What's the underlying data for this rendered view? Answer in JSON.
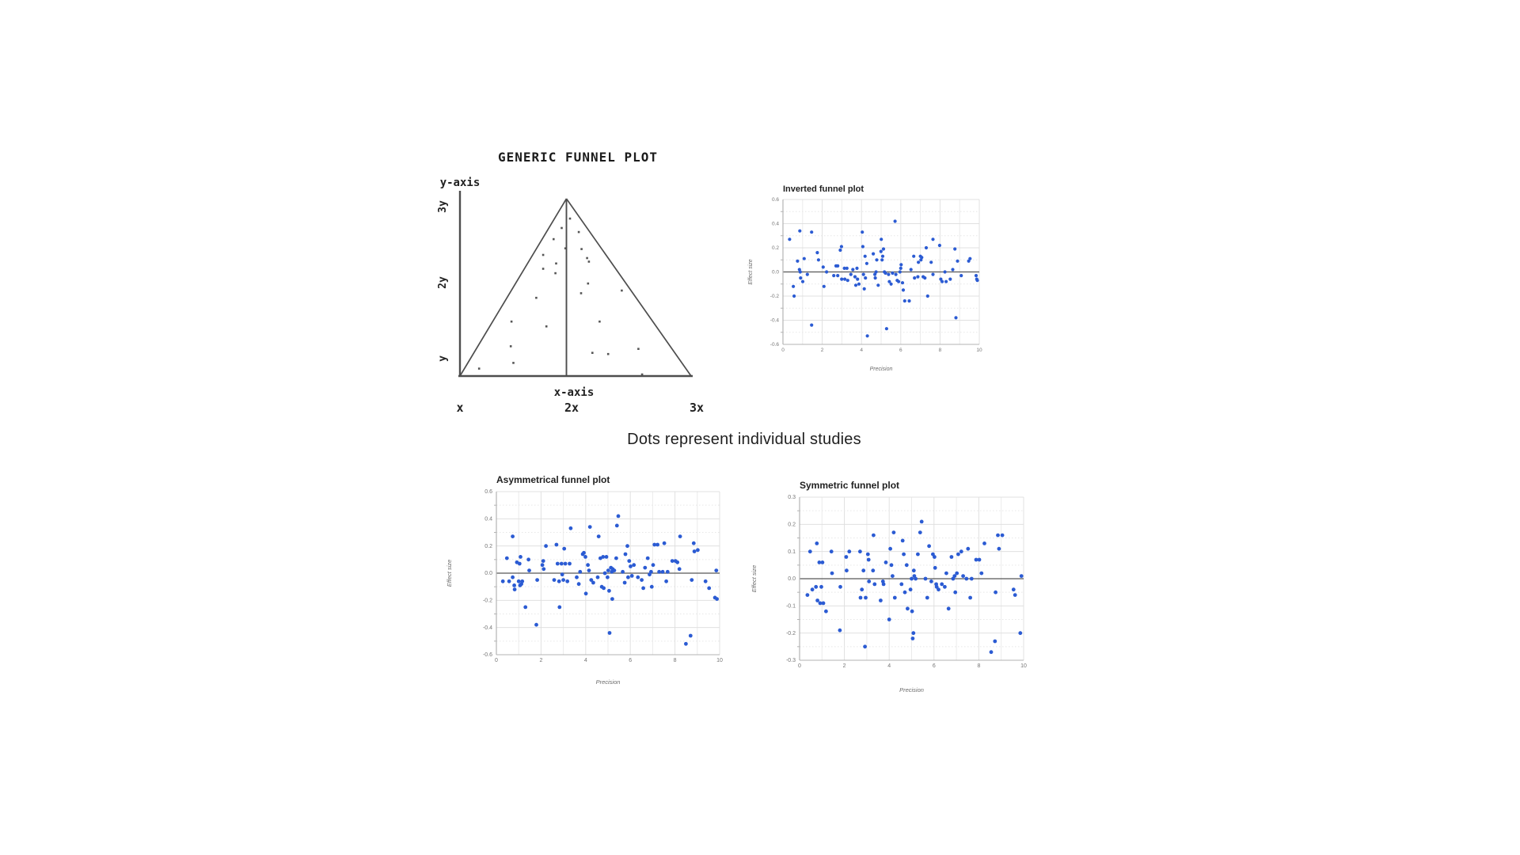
{
  "caption": "Dots represent individual studies",
  "generic_diagram": {
    "title": "GENERIC FUNNEL PLOT",
    "y_axis_label": "y-axis",
    "x_axis_label": "x-axis",
    "y_ticks": [
      "3y",
      "2y",
      "y"
    ],
    "x_ticks": [
      "x",
      "2x",
      "3x"
    ],
    "line_color": "#4d4d4d",
    "dot_color": "#555555",
    "dots": [
      [
        0.476,
        0.112
      ],
      [
        0.44,
        0.165
      ],
      [
        0.514,
        0.188
      ],
      [
        0.405,
        0.228
      ],
      [
        0.526,
        0.284
      ],
      [
        0.456,
        0.28
      ],
      [
        0.36,
        0.317
      ],
      [
        0.55,
        0.335
      ],
      [
        0.558,
        0.355
      ],
      [
        0.416,
        0.365
      ],
      [
        0.36,
        0.395
      ],
      [
        0.413,
        0.42
      ],
      [
        0.554,
        0.478
      ],
      [
        0.524,
        0.533
      ],
      [
        0.7,
        0.518
      ],
      [
        0.33,
        0.559
      ],
      [
        0.223,
        0.693
      ],
      [
        0.374,
        0.72
      ],
      [
        0.604,
        0.693
      ],
      [
        0.22,
        0.832
      ],
      [
        0.573,
        0.869
      ],
      [
        0.641,
        0.876
      ],
      [
        0.772,
        0.847
      ],
      [
        0.231,
        0.926
      ],
      [
        0.083,
        0.958
      ],
      [
        0.788,
        0.991
      ]
    ]
  },
  "chart_data": [
    {
      "id": "inverted",
      "type": "scatter",
      "title": "Inverted funnel plot",
      "xlabel": "Precision",
      "ylabel": "Effect size",
      "xlim": [
        0,
        10
      ],
      "ylim": [
        -0.6,
        0.6
      ],
      "x_ticks": [
        0,
        2,
        4,
        6,
        8,
        10
      ],
      "y_ticks": [
        0.6,
        0.4,
        0.2,
        0,
        -0.2,
        -0.4,
        -0.6
      ],
      "grid": true,
      "zero_line": true,
      "legend": "none",
      "dot_color": "#2b5bd3",
      "points": [
        [
          0.34,
          0.27
        ],
        [
          0.53,
          -0.12
        ],
        [
          0.57,
          -0.2
        ],
        [
          0.74,
          0.09
        ],
        [
          0.86,
          0.34
        ],
        [
          0.84,
          0.02
        ],
        [
          0.88,
          0.0
        ],
        [
          0.9,
          -0.05
        ],
        [
          1.01,
          -0.08
        ],
        [
          1.08,
          0.11
        ],
        [
          1.24,
          -0.02
        ],
        [
          1.46,
          0.33
        ],
        [
          1.46,
          -0.44
        ],
        [
          1.75,
          0.16
        ],
        [
          1.81,
          0.1
        ],
        [
          2.05,
          0.04
        ],
        [
          2.09,
          -0.12
        ],
        [
          2.22,
          0.0
        ],
        [
          2.59,
          -0.03
        ],
        [
          2.7,
          0.05
        ],
        [
          2.79,
          0.05
        ],
        [
          2.79,
          -0.03
        ],
        [
          2.92,
          0.18
        ],
        [
          2.98,
          0.21
        ],
        [
          2.99,
          -0.06
        ],
        [
          3.13,
          0.03
        ],
        [
          3.15,
          -0.06
        ],
        [
          3.26,
          0.03
        ],
        [
          3.3,
          -0.07
        ],
        [
          3.46,
          -0.02
        ],
        [
          3.56,
          0.02
        ],
        [
          3.67,
          -0.04
        ],
        [
          3.71,
          -0.11
        ],
        [
          3.77,
          0.03
        ],
        [
          3.8,
          -0.06
        ],
        [
          3.87,
          -0.1
        ],
        [
          4.04,
          0.33
        ],
        [
          4.07,
          0.21
        ],
        [
          4.1,
          -0.02
        ],
        [
          4.14,
          -0.14
        ],
        [
          4.18,
          0.13
        ],
        [
          4.2,
          -0.05
        ],
        [
          4.27,
          0.07
        ],
        [
          4.3,
          -0.53
        ],
        [
          4.6,
          0.15
        ],
        [
          4.68,
          -0.02
        ],
        [
          4.7,
          -0.05
        ],
        [
          4.74,
          0.0
        ],
        [
          4.78,
          0.1
        ],
        [
          4.85,
          -0.11
        ],
        [
          4.99,
          0.17
        ],
        [
          5.01,
          0.27
        ],
        [
          5.05,
          0.1
        ],
        [
          5.08,
          0.13
        ],
        [
          5.12,
          0.19
        ],
        [
          5.17,
          0.0
        ],
        [
          5.22,
          -0.01
        ],
        [
          5.28,
          -0.47
        ],
        [
          5.38,
          -0.02
        ],
        [
          5.42,
          -0.08
        ],
        [
          5.51,
          -0.1
        ],
        [
          5.58,
          -0.01
        ],
        [
          5.71,
          0.42
        ],
        [
          5.75,
          -0.02
        ],
        [
          5.82,
          -0.07
        ],
        [
          5.89,
          -0.08
        ],
        [
          5.96,
          0.0
        ],
        [
          6.0,
          0.03
        ],
        [
          6.02,
          0.06
        ],
        [
          6.09,
          -0.09
        ],
        [
          6.13,
          -0.15
        ],
        [
          6.2,
          -0.24
        ],
        [
          6.43,
          -0.24
        ],
        [
          6.52,
          0.02
        ],
        [
          6.66,
          0.13
        ],
        [
          6.7,
          -0.05
        ],
        [
          6.87,
          -0.04
        ],
        [
          6.9,
          0.08
        ],
        [
          7.0,
          0.13
        ],
        [
          7.03,
          0.1
        ],
        [
          7.07,
          0.12
        ],
        [
          7.14,
          -0.04
        ],
        [
          7.23,
          -0.05
        ],
        [
          7.3,
          0.2
        ],
        [
          7.37,
          -0.2
        ],
        [
          7.55,
          0.08
        ],
        [
          7.64,
          0.27
        ],
        [
          7.64,
          -0.02
        ],
        [
          7.98,
          0.22
        ],
        [
          8.04,
          -0.06
        ],
        [
          8.11,
          -0.08
        ],
        [
          8.25,
          0.0
        ],
        [
          8.31,
          -0.08
        ],
        [
          8.52,
          -0.06
        ],
        [
          8.65,
          0.02
        ],
        [
          8.76,
          0.19
        ],
        [
          8.81,
          -0.38
        ],
        [
          8.89,
          0.09
        ],
        [
          9.08,
          -0.03
        ],
        [
          9.46,
          0.09
        ],
        [
          9.53,
          0.11
        ],
        [
          9.84,
          -0.03
        ],
        [
          9.87,
          -0.06
        ],
        [
          9.9,
          -0.07
        ]
      ]
    },
    {
      "id": "asym",
      "type": "scatter",
      "title": "Asymmetrical funnel plot",
      "xlabel": "Precision",
      "ylabel": "Effect size",
      "xlim": [
        0,
        10
      ],
      "ylim": [
        -0.6,
        0.6
      ],
      "x_ticks": [
        0,
        2,
        4,
        6,
        8,
        10
      ],
      "y_ticks": [
        0.6,
        0.4,
        0.2,
        0,
        -0.2,
        -0.4,
        -0.6
      ],
      "grid": true,
      "zero_line": true,
      "legend": "none",
      "dot_color": "#2b5bd3",
      "points": [
        [
          0.29,
          -0.06
        ],
        [
          0.47,
          0.11
        ],
        [
          0.57,
          -0.06
        ],
        [
          0.73,
          0.27
        ],
        [
          0.73,
          -0.03
        ],
        [
          0.8,
          -0.09
        ],
        [
          0.82,
          -0.12
        ],
        [
          0.92,
          0.08
        ],
        [
          1.0,
          -0.06
        ],
        [
          1.04,
          0.07
        ],
        [
          1.06,
          -0.09
        ],
        [
          1.08,
          0.12
        ],
        [
          1.12,
          -0.08
        ],
        [
          1.16,
          -0.06
        ],
        [
          1.3,
          -0.25
        ],
        [
          1.44,
          0.1
        ],
        [
          1.47,
          0.02
        ],
        [
          1.79,
          -0.38
        ],
        [
          1.83,
          -0.05
        ],
        [
          2.06,
          0.06
        ],
        [
          2.1,
          0.09
        ],
        [
          2.12,
          0.03
        ],
        [
          2.22,
          0.2
        ],
        [
          2.59,
          -0.05
        ],
        [
          2.69,
          0.21
        ],
        [
          2.74,
          0.07
        ],
        [
          2.81,
          -0.06
        ],
        [
          2.83,
          -0.25
        ],
        [
          2.92,
          0.07
        ],
        [
          2.95,
          -0.01
        ],
        [
          3.0,
          -0.05
        ],
        [
          3.04,
          0.18
        ],
        [
          3.09,
          0.07
        ],
        [
          3.18,
          -0.06
        ],
        [
          3.28,
          0.07
        ],
        [
          3.33,
          0.33
        ],
        [
          3.6,
          -0.03
        ],
        [
          3.69,
          -0.08
        ],
        [
          3.75,
          0.01
        ],
        [
          3.87,
          0.14
        ],
        [
          3.92,
          0.15
        ],
        [
          3.99,
          0.12
        ],
        [
          4.01,
          -0.15
        ],
        [
          4.1,
          0.06
        ],
        [
          4.15,
          0.02
        ],
        [
          4.19,
          0.34
        ],
        [
          4.25,
          -0.05
        ],
        [
          4.34,
          -0.07
        ],
        [
          4.54,
          -0.03
        ],
        [
          4.58,
          0.27
        ],
        [
          4.66,
          0.11
        ],
        [
          4.72,
          -0.1
        ],
        [
          4.78,
          0.12
        ],
        [
          4.81,
          -0.11
        ],
        [
          4.86,
          0.0
        ],
        [
          4.93,
          0.12
        ],
        [
          4.98,
          -0.03
        ],
        [
          5.01,
          0.02
        ],
        [
          5.05,
          -0.13
        ],
        [
          5.07,
          -0.44
        ],
        [
          5.13,
          0.04
        ],
        [
          5.17,
          0.01
        ],
        [
          5.19,
          -0.19
        ],
        [
          5.21,
          0.03
        ],
        [
          5.28,
          0.02
        ],
        [
          5.37,
          0.11
        ],
        [
          5.4,
          0.35
        ],
        [
          5.46,
          0.42
        ],
        [
          5.66,
          0.01
        ],
        [
          5.75,
          -0.07
        ],
        [
          5.78,
          0.14
        ],
        [
          5.87,
          0.2
        ],
        [
          5.9,
          -0.03
        ],
        [
          5.95,
          0.09
        ],
        [
          6.01,
          0.05
        ],
        [
          6.07,
          -0.02
        ],
        [
          6.16,
          0.06
        ],
        [
          6.34,
          -0.03
        ],
        [
          6.51,
          -0.05
        ],
        [
          6.58,
          -0.11
        ],
        [
          6.66,
          0.04
        ],
        [
          6.78,
          0.11
        ],
        [
          6.86,
          -0.01
        ],
        [
          6.93,
          0.01
        ],
        [
          6.96,
          -0.1
        ],
        [
          7.02,
          0.06
        ],
        [
          7.08,
          0.21
        ],
        [
          7.22,
          0.21
        ],
        [
          7.29,
          0.01
        ],
        [
          7.45,
          0.01
        ],
        [
          7.52,
          0.22
        ],
        [
          7.61,
          -0.06
        ],
        [
          7.67,
          0.01
        ],
        [
          7.88,
          0.09
        ],
        [
          8.02,
          0.09
        ],
        [
          8.11,
          0.08
        ],
        [
          8.2,
          0.03
        ],
        [
          8.23,
          0.27
        ],
        [
          8.49,
          -0.52
        ],
        [
          8.7,
          -0.46
        ],
        [
          8.75,
          -0.05
        ],
        [
          8.84,
          0.22
        ],
        [
          8.87,
          0.16
        ],
        [
          9.02,
          0.17
        ],
        [
          9.37,
          -0.06
        ],
        [
          9.53,
          -0.11
        ],
        [
          9.79,
          -0.18
        ],
        [
          9.85,
          0.02
        ],
        [
          9.88,
          -0.19
        ]
      ]
    },
    {
      "id": "sym",
      "type": "scatter",
      "title": "Symmetric funnel plot",
      "xlabel": "Precision",
      "ylabel": "Effect size",
      "xlim": [
        0,
        10
      ],
      "ylim": [
        -0.3,
        0.3
      ],
      "x_ticks": [
        0,
        2,
        4,
        6,
        8,
        10
      ],
      "y_ticks": [
        0.3,
        0.2,
        0.1,
        0,
        -0.1,
        -0.2,
        -0.3
      ],
      "grid": true,
      "zero_line": true,
      "legend": "none",
      "dot_color": "#2b5bd3",
      "points": [
        [
          0.35,
          -0.06
        ],
        [
          0.47,
          0.1
        ],
        [
          0.57,
          -0.04
        ],
        [
          0.73,
          -0.03
        ],
        [
          0.77,
          0.13
        ],
        [
          0.8,
          -0.08
        ],
        [
          0.88,
          0.06
        ],
        [
          0.92,
          -0.09
        ],
        [
          0.97,
          -0.03
        ],
        [
          1.02,
          0.06
        ],
        [
          1.06,
          -0.09
        ],
        [
          1.18,
          -0.12
        ],
        [
          1.42,
          0.1
        ],
        [
          1.45,
          0.02
        ],
        [
          1.8,
          -0.19
        ],
        [
          1.82,
          -0.03
        ],
        [
          2.08,
          0.08
        ],
        [
          2.1,
          0.03
        ],
        [
          2.22,
          0.1
        ],
        [
          2.7,
          0.1
        ],
        [
          2.72,
          -0.07
        ],
        [
          2.78,
          -0.04
        ],
        [
          2.85,
          0.03
        ],
        [
          2.92,
          -0.25
        ],
        [
          2.95,
          -0.07
        ],
        [
          3.05,
          0.09
        ],
        [
          3.08,
          0.07
        ],
        [
          3.1,
          -0.01
        ],
        [
          3.28,
          0.03
        ],
        [
          3.3,
          0.16
        ],
        [
          3.35,
          -0.02
        ],
        [
          3.62,
          -0.08
        ],
        [
          3.72,
          -0.01
        ],
        [
          3.75,
          -0.02
        ],
        [
          3.85,
          0.06
        ],
        [
          4.0,
          -0.15
        ],
        [
          4.05,
          0.11
        ],
        [
          4.1,
          0.05
        ],
        [
          4.15,
          0.01
        ],
        [
          4.2,
          0.17
        ],
        [
          4.25,
          -0.07
        ],
        [
          4.55,
          -0.02
        ],
        [
          4.6,
          0.14
        ],
        [
          4.65,
          0.09
        ],
        [
          4.7,
          -0.05
        ],
        [
          4.78,
          0.05
        ],
        [
          4.82,
          -0.11
        ],
        [
          4.95,
          -0.04
        ],
        [
          5.0,
          0.0
        ],
        [
          5.02,
          -0.12
        ],
        [
          5.05,
          -0.22
        ],
        [
          5.08,
          -0.2
        ],
        [
          5.1,
          0.03
        ],
        [
          5.12,
          0.01
        ],
        [
          5.18,
          0.0
        ],
        [
          5.28,
          0.09
        ],
        [
          5.38,
          0.17
        ],
        [
          5.45,
          0.21
        ],
        [
          5.62,
          0.0
        ],
        [
          5.7,
          -0.07
        ],
        [
          5.78,
          0.12
        ],
        [
          5.88,
          -0.01
        ],
        [
          5.95,
          0.09
        ],
        [
          6.02,
          0.08
        ],
        [
          6.05,
          0.04
        ],
        [
          6.1,
          -0.02
        ],
        [
          6.12,
          -0.03
        ],
        [
          6.2,
          -0.04
        ],
        [
          6.35,
          -0.02
        ],
        [
          6.48,
          -0.03
        ],
        [
          6.55,
          0.02
        ],
        [
          6.65,
          -0.11
        ],
        [
          6.78,
          0.08
        ],
        [
          6.85,
          0.0
        ],
        [
          6.92,
          0.01
        ],
        [
          6.95,
          -0.05
        ],
        [
          7.02,
          0.02
        ],
        [
          7.08,
          0.09
        ],
        [
          7.22,
          0.1
        ],
        [
          7.3,
          0.01
        ],
        [
          7.45,
          0.0
        ],
        [
          7.52,
          0.11
        ],
        [
          7.62,
          -0.07
        ],
        [
          7.68,
          0.0
        ],
        [
          7.88,
          0.07
        ],
        [
          8.02,
          0.07
        ],
        [
          8.12,
          0.02
        ],
        [
          8.25,
          0.13
        ],
        [
          8.55,
          -0.27
        ],
        [
          8.72,
          -0.23
        ],
        [
          8.75,
          -0.05
        ],
        [
          8.85,
          0.16
        ],
        [
          8.9,
          0.11
        ],
        [
          9.05,
          0.16
        ],
        [
          9.55,
          -0.04
        ],
        [
          9.62,
          -0.06
        ],
        [
          9.85,
          -0.2
        ],
        [
          9.9,
          0.01
        ]
      ]
    }
  ]
}
